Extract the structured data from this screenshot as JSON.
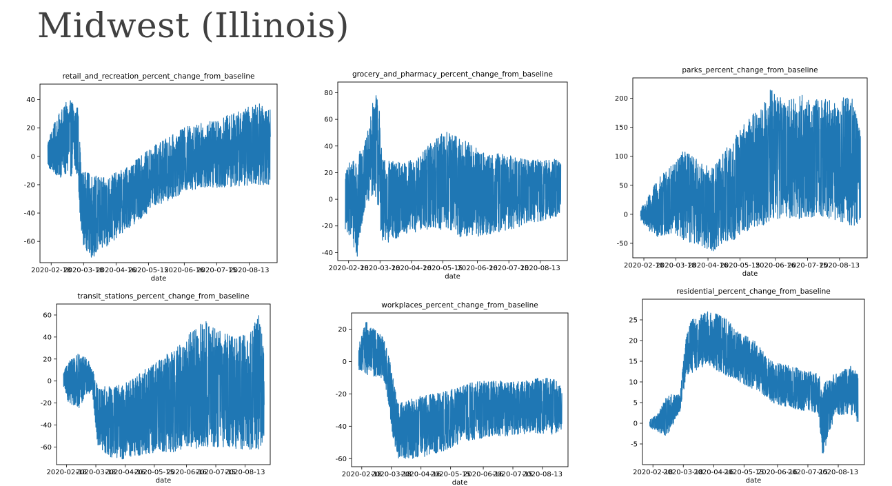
{
  "page": {
    "title": "Midwest (Illinois)"
  },
  "chart_data": [
    {
      "type": "line",
      "title": "retail_and_recreation_percent_change_from_baseline",
      "xlabel": "date",
      "ylabel": "",
      "x_ticks": [
        "2020-02-18",
        "2020-03-18",
        "2020-04-16",
        "2020-05-15",
        "2020-06-16",
        "2020-07-15",
        "2020-08-13"
      ],
      "y_ticks": [
        -60,
        -40,
        -20,
        0,
        20,
        40
      ],
      "xlim": [
        "2020-02-08",
        "2020-09-07"
      ],
      "ylim": [
        -75,
        51
      ],
      "color": "#1f77b4",
      "grid": false,
      "series": [
        {
          "envelope": [
            {
              "x": "2020-02-15",
              "low": -8,
              "high": 12
            },
            {
              "x": "2020-02-20",
              "low": -12,
              "high": 22
            },
            {
              "x": "2020-02-25",
              "low": -15,
              "high": 30
            },
            {
              "x": "2020-03-02",
              "low": -14,
              "high": 38
            },
            {
              "x": "2020-03-08",
              "low": -14,
              "high": 40
            },
            {
              "x": "2020-03-13",
              "low": -14,
              "high": 35
            },
            {
              "x": "2020-03-16",
              "low": -60,
              "high": -10
            },
            {
              "x": "2020-03-25",
              "low": -72,
              "high": -12
            },
            {
              "x": "2020-04-05",
              "low": -66,
              "high": -15
            },
            {
              "x": "2020-04-20",
              "low": -55,
              "high": -10
            },
            {
              "x": "2020-05-05",
              "low": -46,
              "high": -2
            },
            {
              "x": "2020-05-20",
              "low": -36,
              "high": 8
            },
            {
              "x": "2020-06-05",
              "low": -30,
              "high": 15
            },
            {
              "x": "2020-06-20",
              "low": -24,
              "high": 22
            },
            {
              "x": "2020-07-05",
              "low": -22,
              "high": 24
            },
            {
              "x": "2020-07-20",
              "low": -22,
              "high": 28
            },
            {
              "x": "2020-08-05",
              "low": -21,
              "high": 32
            },
            {
              "x": "2020-08-20",
              "low": -20,
              "high": 38
            },
            {
              "x": "2020-09-01",
              "low": -20,
              "high": 33
            }
          ]
        }
      ]
    },
    {
      "type": "line",
      "title": "grocery_and_pharmacy_percent_change_from_baseline",
      "xlabel": "date",
      "ylabel": "",
      "x_ticks": [
        "2020-02-18",
        "2020-03-18",
        "2020-04-16",
        "2020-05-15",
        "2020-06-16",
        "2020-07-15",
        "2020-08-13"
      ],
      "y_ticks": [
        -40,
        -20,
        0,
        20,
        40,
        60,
        80
      ],
      "xlim": [
        "2020-02-08",
        "2020-09-07"
      ],
      "ylim": [
        -46,
        88
      ],
      "color": "#1f77b4",
      "grid": false,
      "series": [
        {
          "envelope": [
            {
              "x": "2020-02-15",
              "low": -25,
              "high": 20
            },
            {
              "x": "2020-02-20",
              "low": -28,
              "high": 30
            },
            {
              "x": "2020-02-26",
              "low": -45,
              "high": 35
            },
            {
              "x": "2020-03-03",
              "low": -10,
              "high": 38
            },
            {
              "x": "2020-03-09",
              "low": 0,
              "high": 60
            },
            {
              "x": "2020-03-13",
              "low": 5,
              "high": 83
            },
            {
              "x": "2020-03-17",
              "low": -10,
              "high": 75
            },
            {
              "x": "2020-03-20",
              "low": -35,
              "high": 30
            },
            {
              "x": "2020-04-05",
              "low": -28,
              "high": 28
            },
            {
              "x": "2020-04-20",
              "low": -25,
              "high": 30
            },
            {
              "x": "2020-05-05",
              "low": -22,
              "high": 45
            },
            {
              "x": "2020-05-20",
              "low": -25,
              "high": 52
            },
            {
              "x": "2020-06-05",
              "low": -30,
              "high": 45
            },
            {
              "x": "2020-06-20",
              "low": -28,
              "high": 35
            },
            {
              "x": "2020-07-05",
              "low": -25,
              "high": 35
            },
            {
              "x": "2020-07-20",
              "low": -22,
              "high": 32
            },
            {
              "x": "2020-08-05",
              "low": -18,
              "high": 30
            },
            {
              "x": "2020-08-20",
              "low": -15,
              "high": 30
            },
            {
              "x": "2020-09-01",
              "low": -12,
              "high": 30
            }
          ]
        }
      ]
    },
    {
      "type": "line",
      "title": "parks_percent_change_from_baseline",
      "xlabel": "date",
      "ylabel": "",
      "x_ticks": [
        "2020-02-18",
        "2020-03-18",
        "2020-04-16",
        "2020-05-15",
        "2020-06-16",
        "2020-07-15",
        "2020-08-13"
      ],
      "y_ticks": [
        -50,
        0,
        50,
        100,
        150,
        200
      ],
      "xlim": [
        "2020-02-08",
        "2020-09-07"
      ],
      "ylim": [
        -75,
        235
      ],
      "color": "#1f77b4",
      "grid": false,
      "series": [
        {
          "envelope": [
            {
              "x": "2020-02-15",
              "low": -10,
              "high": 10
            },
            {
              "x": "2020-02-22",
              "low": -30,
              "high": 30
            },
            {
              "x": "2020-03-01",
              "low": -40,
              "high": 60
            },
            {
              "x": "2020-03-12",
              "low": -35,
              "high": 80
            },
            {
              "x": "2020-03-25",
              "low": -45,
              "high": 110
            },
            {
              "x": "2020-04-10",
              "low": -55,
              "high": 90
            },
            {
              "x": "2020-04-20",
              "low": -65,
              "high": 80
            },
            {
              "x": "2020-05-05",
              "low": -50,
              "high": 120
            },
            {
              "x": "2020-05-20",
              "low": -30,
              "high": 160
            },
            {
              "x": "2020-06-05",
              "low": -20,
              "high": 190
            },
            {
              "x": "2020-06-12",
              "low": -10,
              "high": 220
            },
            {
              "x": "2020-06-25",
              "low": -5,
              "high": 195
            },
            {
              "x": "2020-07-10",
              "low": -10,
              "high": 205
            },
            {
              "x": "2020-07-25",
              "low": -5,
              "high": 200
            },
            {
              "x": "2020-08-10",
              "low": -10,
              "high": 195
            },
            {
              "x": "2020-08-25",
              "low": -20,
              "high": 212
            },
            {
              "x": "2020-09-01",
              "low": -22,
              "high": 140
            }
          ]
        }
      ]
    },
    {
      "type": "line",
      "title": "transit_stations_percent_change_from_baseline",
      "xlabel": "date",
      "ylabel": "",
      "x_ticks": [
        "2020-02-18",
        "2020-03-18",
        "2020-04-16",
        "2020-05-15",
        "2020-06-16",
        "2020-07-15",
        "2020-08-13"
      ],
      "y_ticks": [
        -60,
        -40,
        -20,
        0,
        20,
        40,
        60
      ],
      "xlim": [
        "2020-02-08",
        "2020-09-07"
      ],
      "ylim": [
        -76,
        70
      ],
      "color": "#1f77b4",
      "grid": false,
      "series": [
        {
          "envelope": [
            {
              "x": "2020-02-15",
              "low": -5,
              "high": 8
            },
            {
              "x": "2020-02-20",
              "low": -20,
              "high": 18
            },
            {
              "x": "2020-03-01",
              "low": -25,
              "high": 25
            },
            {
              "x": "2020-03-10",
              "low": -10,
              "high": 20
            },
            {
              "x": "2020-03-15",
              "low": -15,
              "high": 10
            },
            {
              "x": "2020-03-20",
              "low": -60,
              "high": -5
            },
            {
              "x": "2020-04-05",
              "low": -72,
              "high": -5
            },
            {
              "x": "2020-04-20",
              "low": -70,
              "high": 0
            },
            {
              "x": "2020-05-05",
              "low": -68,
              "high": 10
            },
            {
              "x": "2020-05-20",
              "low": -65,
              "high": 20
            },
            {
              "x": "2020-06-05",
              "low": -65,
              "high": 30
            },
            {
              "x": "2020-06-20",
              "low": -62,
              "high": 45
            },
            {
              "x": "2020-07-05",
              "low": -60,
              "high": 55
            },
            {
              "x": "2020-07-20",
              "low": -60,
              "high": 45
            },
            {
              "x": "2020-08-05",
              "low": -62,
              "high": 40
            },
            {
              "x": "2020-08-20",
              "low": -63,
              "high": 45
            },
            {
              "x": "2020-08-27",
              "low": -64,
              "high": 66
            },
            {
              "x": "2020-09-01",
              "low": -50,
              "high": 25
            }
          ]
        }
      ]
    },
    {
      "type": "line",
      "title": "workplaces_percent_change_from_baseline",
      "xlabel": "date",
      "ylabel": "",
      "x_ticks": [
        "2020-02-18",
        "2020-03-18",
        "2020-04-16",
        "2020-05-15",
        "2020-06-16",
        "2020-07-15",
        "2020-08-13"
      ],
      "y_ticks": [
        -60,
        -40,
        -20,
        0,
        20
      ],
      "xlim": [
        "2020-02-08",
        "2020-09-07"
      ],
      "ylim": [
        -65,
        30
      ],
      "color": "#1f77b4",
      "grid": false,
      "series": [
        {
          "envelope": [
            {
              "x": "2020-02-15",
              "low": -5,
              "high": 10
            },
            {
              "x": "2020-02-22",
              "low": -8,
              "high": 25
            },
            {
              "x": "2020-03-01",
              "low": -10,
              "high": 20
            },
            {
              "x": "2020-03-10",
              "low": -10,
              "high": 15
            },
            {
              "x": "2020-03-15",
              "low": -25,
              "high": 5
            },
            {
              "x": "2020-03-20",
              "low": -50,
              "high": -10
            },
            {
              "x": "2020-03-25",
              "low": -60,
              "high": -25
            },
            {
              "x": "2020-04-10",
              "low": -60,
              "high": -22
            },
            {
              "x": "2020-04-25",
              "low": -58,
              "high": -20
            },
            {
              "x": "2020-05-10",
              "low": -55,
              "high": -18
            },
            {
              "x": "2020-05-25",
              "low": -50,
              "high": -15
            },
            {
              "x": "2020-06-10",
              "low": -48,
              "high": -12
            },
            {
              "x": "2020-06-25",
              "low": -46,
              "high": -12
            },
            {
              "x": "2020-07-10",
              "low": -46,
              "high": -12
            },
            {
              "x": "2020-07-25",
              "low": -45,
              "high": -12
            },
            {
              "x": "2020-08-10",
              "low": -45,
              "high": -10
            },
            {
              "x": "2020-08-25",
              "low": -45,
              "high": -10
            },
            {
              "x": "2020-09-01",
              "low": -42,
              "high": -15
            }
          ]
        }
      ]
    },
    {
      "type": "line",
      "title": "residential_percent_change_from_baseline",
      "xlabel": "date",
      "ylabel": "",
      "x_ticks": [
        "2020-02-18",
        "2020-03-18",
        "2020-04-16",
        "2020-05-15",
        "2020-06-16",
        "2020-07-15",
        "2020-08-13"
      ],
      "y_ticks": [
        -5,
        0,
        5,
        10,
        15,
        20,
        25
      ],
      "xlim": [
        "2020-02-08",
        "2020-09-07"
      ],
      "ylim": [
        -10,
        30
      ],
      "color": "#1f77b4",
      "grid": false,
      "series": [
        {
          "envelope": [
            {
              "x": "2020-02-15",
              "low": -1,
              "high": 1
            },
            {
              "x": "2020-02-22",
              "low": -2,
              "high": 2
            },
            {
              "x": "2020-03-01",
              "low": -3,
              "high": 6
            },
            {
              "x": "2020-03-05",
              "low": -2,
              "high": 7
            },
            {
              "x": "2020-03-15",
              "low": 3,
              "high": 7
            },
            {
              "x": "2020-03-20",
              "low": 10,
              "high": 20
            },
            {
              "x": "2020-03-25",
              "low": 12,
              "high": 25
            },
            {
              "x": "2020-04-10",
              "low": 14,
              "high": 27
            },
            {
              "x": "2020-04-25",
              "low": 12,
              "high": 26
            },
            {
              "x": "2020-05-10",
              "low": 10,
              "high": 22
            },
            {
              "x": "2020-05-25",
              "low": 8,
              "high": 20
            },
            {
              "x": "2020-06-10",
              "low": 5,
              "high": 15
            },
            {
              "x": "2020-06-25",
              "low": 4,
              "high": 14
            },
            {
              "x": "2020-07-10",
              "low": 3,
              "high": 13
            },
            {
              "x": "2020-07-25",
              "low": 2,
              "high": 12
            },
            {
              "x": "2020-07-29",
              "low": -8,
              "high": 10
            },
            {
              "x": "2020-08-10",
              "low": 2,
              "high": 12
            },
            {
              "x": "2020-08-25",
              "low": 2,
              "high": 14
            },
            {
              "x": "2020-09-01",
              "low": 0,
              "high": 12
            }
          ]
        }
      ]
    }
  ]
}
